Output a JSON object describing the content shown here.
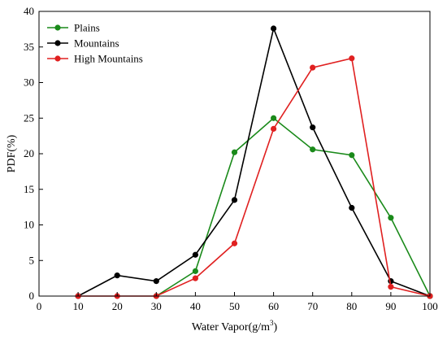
{
  "chart_data": {
    "type": "line",
    "title": "",
    "xlabel": "Water Vapor(g/m",
    "xlabel_sup": "3",
    "xlabel_close": ")",
    "ylabel": "PDF(%)",
    "xlim": [
      0,
      100
    ],
    "ylim": [
      0,
      40
    ],
    "xticks": [
      0,
      10,
      20,
      30,
      40,
      50,
      60,
      70,
      80,
      90,
      100
    ],
    "yticks": [
      0,
      5,
      10,
      15,
      20,
      25,
      30,
      35,
      40
    ],
    "grid": false,
    "legend_position": "top-left",
    "series": [
      {
        "name": "Plains",
        "color": "#1a8a1a",
        "x": [
          30,
          40,
          50,
          60,
          70,
          80,
          90,
          100
        ],
        "y": [
          0,
          3.5,
          20.2,
          25.0,
          20.6,
          19.8,
          11.0,
          0
        ]
      },
      {
        "name": "Mountains",
        "color": "#000000",
        "x": [
          10,
          20,
          30,
          40,
          50,
          60,
          70,
          80,
          90,
          100
        ],
        "y": [
          0,
          2.9,
          2.1,
          5.8,
          13.5,
          37.6,
          23.7,
          12.4,
          2.1,
          0
        ]
      },
      {
        "name": "High Mountains",
        "color": "#e02020",
        "x": [
          10,
          20,
          30,
          40,
          50,
          60,
          70,
          80,
          90,
          100
        ],
        "y": [
          0,
          0,
          0,
          2.5,
          7.4,
          23.5,
          32.1,
          33.4,
          1.3,
          0
        ]
      }
    ]
  }
}
